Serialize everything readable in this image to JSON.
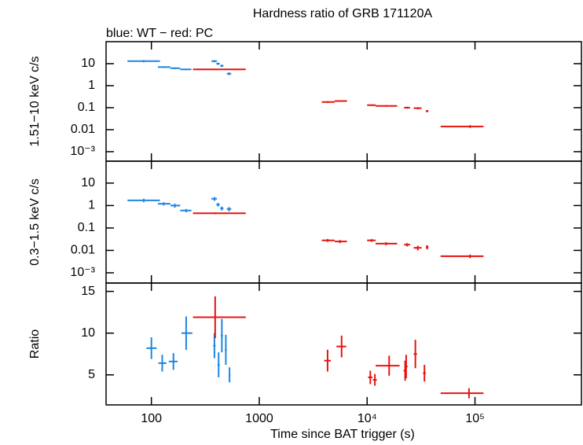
{
  "chart_data": [
    {
      "type": "errorbar",
      "title": "Hardness ratio of GRB 171120A",
      "subtitle": "blue: WT − red: PC",
      "ylabel": "1.51−10 keV c/s",
      "log_x": true,
      "log_y": true,
      "xlim": [
        38,
        970000
      ],
      "xticks": [
        100,
        1000,
        10000,
        100000
      ],
      "ylim": [
        0.00037,
        100
      ],
      "yticks": [
        {
          "value": 0.001,
          "label": "10⁻³"
        },
        0.01,
        0.1,
        1,
        10
      ],
      "series": [
        {
          "color": "#1f86e0",
          "x": [
            85,
            130,
            165,
            210,
            385,
            415,
            450,
            525
          ],
          "xerr": [
            [
              25,
              35
            ],
            [
              15,
              20
            ],
            [
              15,
              20
            ],
            [
              25,
              25
            ],
            [
              25,
              20
            ],
            [
              15,
              15
            ],
            [
              15,
              15
            ],
            [
              25,
              25
            ]
          ],
          "values": [
            13,
            7,
            6.2,
            5.5,
            13,
            10,
            8,
            3.5
          ],
          "yerr": [
            1.5,
            0.6,
            0.5,
            0.4,
            1.5,
            1.2,
            1,
            0.5
          ]
        },
        {
          "color": "#e8130f",
          "x": [
            390,
            4300,
            5600,
            11000,
            15000,
            23500,
            29500,
            36000,
            90000
          ],
          "xerr": [
            [
              147,
              360
            ],
            [
              500,
              700
            ],
            [
              600,
              900
            ],
            [
              1000,
              1000
            ],
            [
              3000,
              4000
            ],
            [
              1500,
              1500
            ],
            [
              2500,
              2500
            ],
            [
              1000,
              1000
            ],
            [
              42000,
              30000
            ]
          ],
          "values": [
            5.5,
            0.18,
            0.2,
            0.13,
            0.12,
            0.1,
            0.095,
            0.07,
            0.014
          ],
          "yerr": [
            0.3,
            0.015,
            0.015,
            0.01,
            0.01,
            0.01,
            0.01,
            0.008,
            0.002
          ]
        }
      ]
    },
    {
      "type": "errorbar",
      "ylabel": "0.3−1.5 keV c/s",
      "log_x": true,
      "log_y": true,
      "xlim": [
        38,
        970000
      ],
      "xticks": [
        100,
        1000,
        10000,
        100000
      ],
      "ylim": [
        0.00035,
        95
      ],
      "yticks": [
        {
          "value": 0.001,
          "label": "10⁻³"
        },
        0.01,
        0.1,
        1,
        10
      ],
      "series": [
        {
          "color": "#1f86e0",
          "x": [
            85,
            130,
            165,
            210,
            385,
            415,
            450,
            525
          ],
          "xerr": [
            [
              25,
              35
            ],
            [
              15,
              20
            ],
            [
              15,
              20
            ],
            [
              25,
              25
            ],
            [
              25,
              20
            ],
            [
              15,
              15
            ],
            [
              15,
              15
            ],
            [
              25,
              25
            ]
          ],
          "values": [
            1.7,
            1.2,
            1.0,
            0.6,
            2.0,
            1.1,
            0.75,
            0.7
          ],
          "yerr": [
            0.3,
            0.2,
            0.2,
            0.1,
            0.4,
            0.2,
            0.15,
            0.15
          ]
        },
        {
          "color": "#e8130f",
          "x": [
            390,
            4300,
            5600,
            11000,
            15000,
            23500,
            29500,
            36000,
            90000
          ],
          "xerr": [
            [
              147,
              360
            ],
            [
              500,
              700
            ],
            [
              600,
              900
            ],
            [
              1000,
              1000
            ],
            [
              3000,
              4000
            ],
            [
              1500,
              1500
            ],
            [
              2500,
              2500
            ],
            [
              1000,
              1000
            ],
            [
              42000,
              30000
            ]
          ],
          "values": [
            0.45,
            0.028,
            0.025,
            0.028,
            0.02,
            0.018,
            0.013,
            0.014,
            0.0055
          ],
          "yerr": [
            0.04,
            0.004,
            0.004,
            0.004,
            0.003,
            0.003,
            0.003,
            0.003,
            0.001
          ]
        }
      ]
    },
    {
      "type": "errorbar",
      "ylabel": "Ratio",
      "xlabel": "Time since BAT trigger (s)",
      "log_x": true,
      "log_y": false,
      "xlim": [
        38,
        970000
      ],
      "xticks": [
        100,
        1000,
        {
          "value": 10000,
          "label": "10⁴"
        },
        {
          "value": 100000,
          "label": "10⁵"
        }
      ],
      "ylim": [
        1.4,
        16
      ],
      "yticks": [
        5,
        10,
        15
      ],
      "series": [
        {
          "color": "#1f86e0",
          "x": [
            100,
            126,
            160,
            210,
            384,
            420,
            450,
            490,
            530
          ],
          "xerr": [
            [
              10,
              12
            ],
            [
              10,
              12
            ],
            [
              15,
              15
            ],
            [
              20,
              30
            ],
            [
              10,
              10
            ],
            [
              10,
              10
            ],
            [
              10,
              10
            ],
            [
              10,
              10
            ],
            [
              10,
              10
            ]
          ],
          "values": [
            8.2,
            6.4,
            6.6,
            10,
            8.5,
            6.2,
            9.7,
            8,
            5
          ],
          "yerr": [
            1.3,
            1,
            1,
            2,
            1.5,
            1.5,
            2,
            1.8,
            0.9
          ]
        },
        {
          "color": "#e8130f",
          "x": [
            390,
            4300,
            5800,
            10700,
            11800,
            16000,
            22500,
            23000,
            28000,
            34000,
            88000
          ],
          "xerr": [
            [
              147,
              360
            ],
            [
              300,
              300
            ],
            [
              600,
              600
            ],
            [
              500,
              500
            ],
            [
              500,
              500
            ],
            [
              4000,
              4000
            ],
            [
              700,
              700
            ],
            [
              700,
              700
            ],
            [
              1000,
              1000
            ],
            [
              1000,
              1000
            ],
            [
              40000,
              32000
            ]
          ],
          "values": [
            11.9,
            6.7,
            8.4,
            4.7,
            4.4,
            6.1,
            5.5,
            6.0,
            7.5,
            5.2,
            2.8
          ],
          "yerr": [
            2.5,
            1.3,
            1.3,
            0.8,
            0.7,
            1.2,
            1.2,
            1.4,
            1.7,
            1,
            0.6
          ]
        }
      ]
    }
  ]
}
